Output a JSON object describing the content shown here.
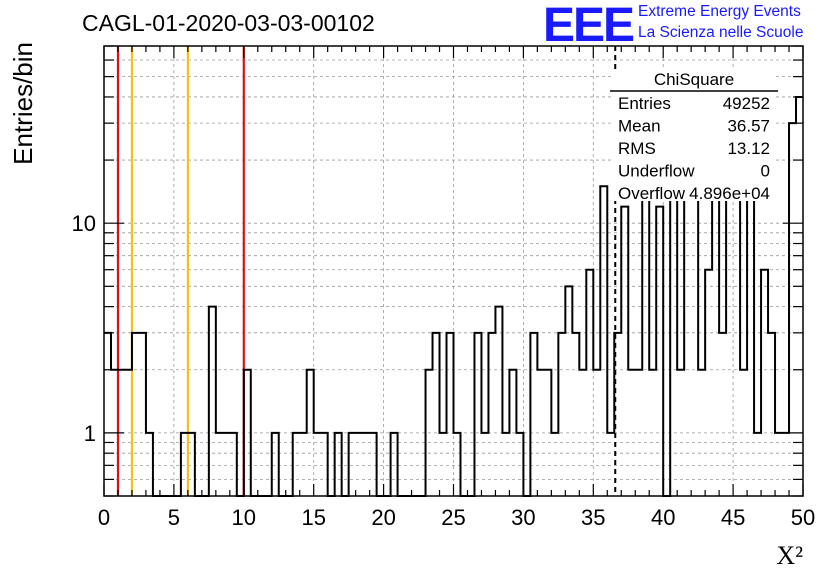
{
  "header": {
    "title": "CAGL-01-2020-03-03-00102",
    "logo_text": "EEE",
    "org_line1": "Extreme Energy Events",
    "org_line2": "La Scienza nelle Scuole"
  },
  "stats_box": {
    "title": "ChiSquare",
    "rows": [
      {
        "label": "Entries",
        "value": "49252"
      },
      {
        "label": "Mean",
        "value": "36.57"
      },
      {
        "label": "RMS",
        "value": "13.12"
      },
      {
        "label": "Underflow",
        "value": "0"
      },
      {
        "label": "Overflow",
        "value": "4.896e+04"
      }
    ]
  },
  "colors": {
    "histogram": "#000000",
    "red_lines": "#e01010",
    "yellow_lines": "#f2c21b",
    "mean_line": "#000000",
    "logo_blue": "#1a1aff",
    "grid": "#9a9a9a"
  },
  "chart_data": {
    "type": "histogram",
    "xlabel": "X²",
    "ylabel": "Entries/bin",
    "xlim": [
      0,
      50
    ],
    "ylim": [
      0.5,
      70
    ],
    "log_y": true,
    "grid": true,
    "bin_width": 0.5,
    "values": [
      3,
      2,
      2,
      2,
      3,
      3,
      1,
      0,
      0,
      0,
      0,
      1,
      1,
      0,
      0,
      4,
      1,
      1,
      1,
      0,
      2,
      0,
      0,
      0,
      1,
      0,
      0,
      1,
      1,
      2,
      1,
      1,
      0,
      1,
      0,
      1,
      1,
      1,
      1,
      0,
      0,
      1,
      0,
      0,
      0,
      0,
      2,
      3,
      1,
      3,
      1,
      0,
      0,
      3,
      1,
      3,
      4,
      1,
      2,
      1,
      0,
      3,
      2,
      2,
      1,
      3,
      5,
      3,
      2,
      6,
      2,
      15,
      1,
      3,
      12,
      2,
      2,
      40,
      2,
      12,
      0,
      15,
      2,
      40,
      25,
      2,
      6,
      40,
      3,
      15,
      35,
      2,
      40,
      1,
      6,
      3,
      1,
      1,
      30,
      40
    ],
    "vertical_lines": [
      {
        "x": 1,
        "color": "red"
      },
      {
        "x": 10,
        "color": "red"
      },
      {
        "x": 2,
        "color": "yellow"
      },
      {
        "x": 6,
        "color": "yellow"
      },
      {
        "x": 36.57,
        "color": "black",
        "style": "dashed"
      }
    ],
    "x_ticks": [
      0,
      5,
      10,
      15,
      20,
      25,
      30,
      35,
      40,
      45,
      50
    ],
    "y_ticks": [
      1,
      10
    ]
  }
}
